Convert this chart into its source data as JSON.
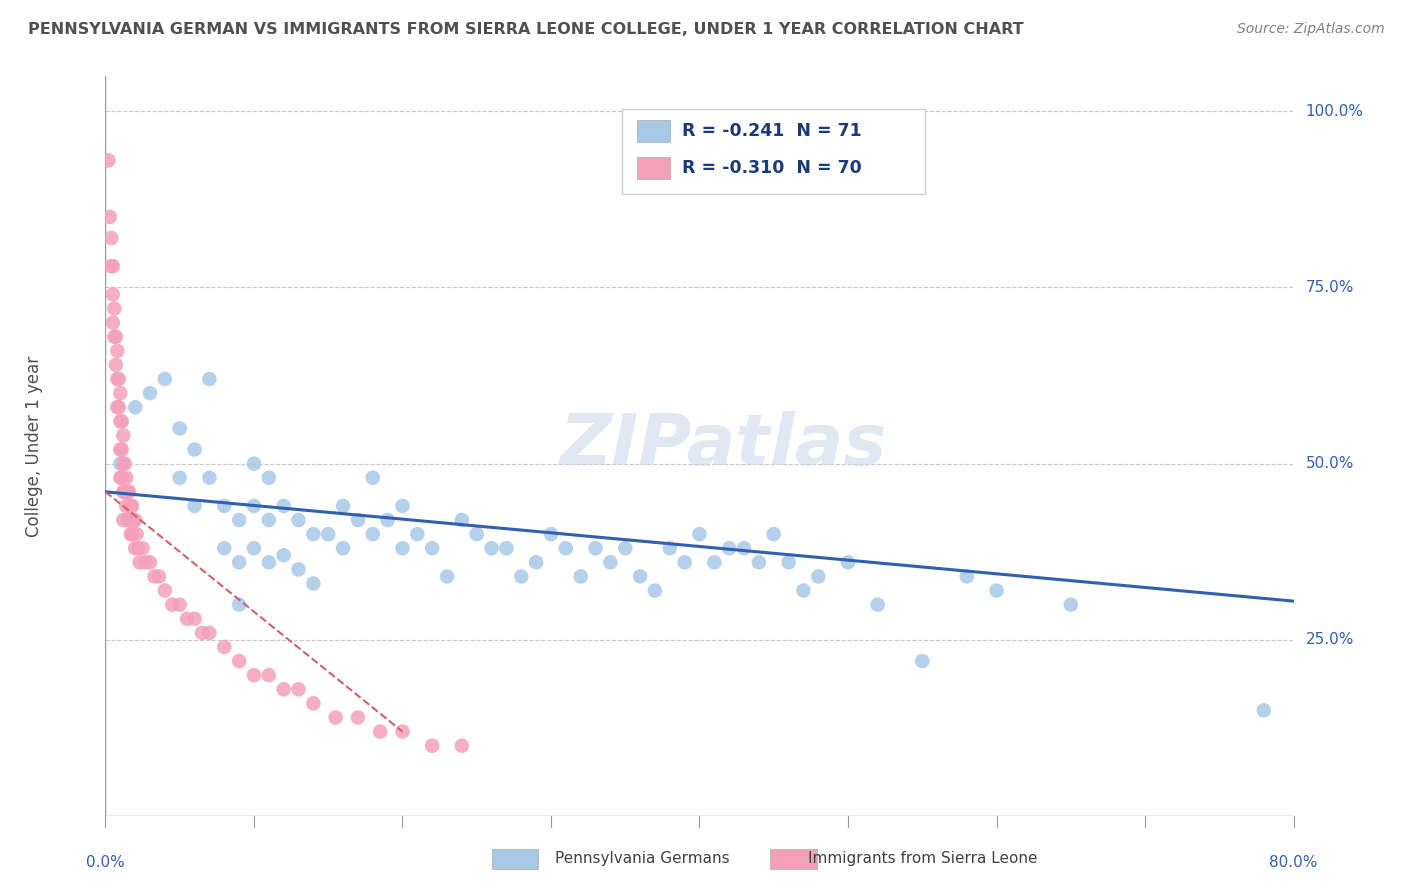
{
  "title": "PENNSYLVANIA GERMAN VS IMMIGRANTS FROM SIERRA LEONE COLLEGE, UNDER 1 YEAR CORRELATION CHART",
  "source_text": "Source: ZipAtlas.com",
  "ylabel": "College, Under 1 year",
  "ytick_labels": [
    "25.0%",
    "50.0%",
    "75.0%",
    "100.0%"
  ],
  "ytick_values": [
    0.25,
    0.5,
    0.75,
    1.0
  ],
  "xlim": [
    0.0,
    0.8
  ],
  "ylim": [
    0.0,
    1.05
  ],
  "xtick_left_label": "0.0%",
  "xtick_right_label": "80.0%",
  "legend_label1": "Pennsylvania Germans",
  "legend_label2": "Immigrants from Sierra Leone",
  "legend_r1": "R = -0.241",
  "legend_n1": "N = 71",
  "legend_r2": "R = -0.310",
  "legend_n2": "N = 70",
  "watermark": "ZIPatlas",
  "blue_scatter_x": [
    0.01,
    0.02,
    0.03,
    0.04,
    0.05,
    0.05,
    0.06,
    0.06,
    0.07,
    0.07,
    0.08,
    0.08,
    0.09,
    0.09,
    0.09,
    0.1,
    0.1,
    0.1,
    0.11,
    0.11,
    0.11,
    0.12,
    0.12,
    0.13,
    0.13,
    0.14,
    0.14,
    0.15,
    0.16,
    0.16,
    0.17,
    0.18,
    0.18,
    0.19,
    0.2,
    0.2,
    0.21,
    0.22,
    0.23,
    0.24,
    0.25,
    0.26,
    0.27,
    0.28,
    0.29,
    0.3,
    0.31,
    0.32,
    0.33,
    0.34,
    0.35,
    0.36,
    0.37,
    0.38,
    0.39,
    0.4,
    0.41,
    0.42,
    0.43,
    0.44,
    0.45,
    0.46,
    0.47,
    0.48,
    0.5,
    0.52,
    0.55,
    0.58,
    0.6,
    0.65,
    0.78
  ],
  "blue_scatter_y": [
    0.5,
    0.58,
    0.6,
    0.62,
    0.55,
    0.48,
    0.52,
    0.44,
    0.62,
    0.48,
    0.44,
    0.38,
    0.42,
    0.36,
    0.3,
    0.5,
    0.44,
    0.38,
    0.48,
    0.42,
    0.36,
    0.44,
    0.37,
    0.42,
    0.35,
    0.4,
    0.33,
    0.4,
    0.44,
    0.38,
    0.42,
    0.48,
    0.4,
    0.42,
    0.44,
    0.38,
    0.4,
    0.38,
    0.34,
    0.42,
    0.4,
    0.38,
    0.38,
    0.34,
    0.36,
    0.4,
    0.38,
    0.34,
    0.38,
    0.36,
    0.38,
    0.34,
    0.32,
    0.38,
    0.36,
    0.4,
    0.36,
    0.38,
    0.38,
    0.36,
    0.4,
    0.36,
    0.32,
    0.34,
    0.36,
    0.3,
    0.22,
    0.34,
    0.32,
    0.3,
    0.15
  ],
  "pink_scatter_x": [
    0.002,
    0.003,
    0.004,
    0.004,
    0.005,
    0.005,
    0.005,
    0.006,
    0.006,
    0.007,
    0.007,
    0.008,
    0.008,
    0.008,
    0.009,
    0.009,
    0.01,
    0.01,
    0.01,
    0.01,
    0.011,
    0.011,
    0.011,
    0.012,
    0.012,
    0.012,
    0.012,
    0.013,
    0.013,
    0.014,
    0.014,
    0.015,
    0.015,
    0.016,
    0.016,
    0.017,
    0.017,
    0.018,
    0.018,
    0.019,
    0.02,
    0.02,
    0.021,
    0.022,
    0.023,
    0.025,
    0.027,
    0.03,
    0.033,
    0.036,
    0.04,
    0.045,
    0.05,
    0.055,
    0.06,
    0.065,
    0.07,
    0.08,
    0.09,
    0.1,
    0.11,
    0.12,
    0.13,
    0.14,
    0.155,
    0.17,
    0.185,
    0.2,
    0.22,
    0.24
  ],
  "pink_scatter_y": [
    0.93,
    0.85,
    0.82,
    0.78,
    0.78,
    0.74,
    0.7,
    0.72,
    0.68,
    0.68,
    0.64,
    0.66,
    0.62,
    0.58,
    0.62,
    0.58,
    0.6,
    0.56,
    0.52,
    0.48,
    0.56,
    0.52,
    0.48,
    0.54,
    0.5,
    0.46,
    0.42,
    0.5,
    0.46,
    0.48,
    0.44,
    0.46,
    0.42,
    0.46,
    0.42,
    0.44,
    0.4,
    0.44,
    0.4,
    0.42,
    0.42,
    0.38,
    0.4,
    0.38,
    0.36,
    0.38,
    0.36,
    0.36,
    0.34,
    0.34,
    0.32,
    0.3,
    0.3,
    0.28,
    0.28,
    0.26,
    0.26,
    0.24,
    0.22,
    0.2,
    0.2,
    0.18,
    0.18,
    0.16,
    0.14,
    0.14,
    0.12,
    0.12,
    0.1,
    0.1
  ],
  "blue_line_x": [
    0.0,
    0.8
  ],
  "blue_line_y": [
    0.46,
    0.305
  ],
  "pink_line_x": [
    0.0,
    0.2
  ],
  "pink_line_y": [
    0.46,
    0.12
  ],
  "blue_scatter_color": "#a8c8e8",
  "pink_scatter_color": "#f4a0b8",
  "blue_line_color": "#3060b0",
  "pink_line_color": "#d06070",
  "grid_color": "#c8c8c8",
  "background_color": "#ffffff",
  "title_color": "#505050",
  "source_color": "#808080",
  "axis_label_color": "#3060b0",
  "ylabel_color": "#505050"
}
